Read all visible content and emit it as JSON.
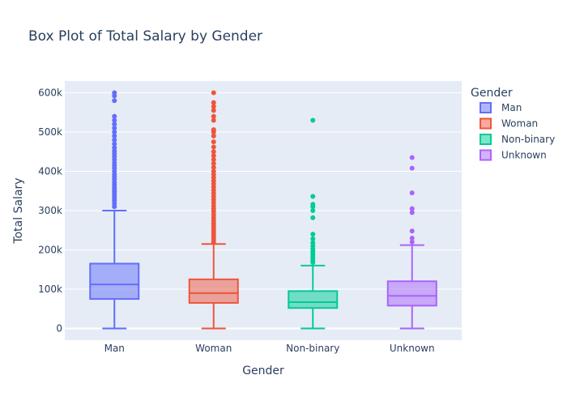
{
  "chart_data": {
    "type": "box",
    "title": "Box Plot of Total Salary by Gender",
    "xlabel": "Gender",
    "ylabel": "Total Salary",
    "ylim": [
      -30000,
      630000
    ],
    "y_ticks": [
      0,
      100000,
      200000,
      300000,
      400000,
      500000,
      600000
    ],
    "y_tick_labels": [
      "0",
      "100k",
      "200k",
      "300k",
      "400k",
      "500k",
      "600k"
    ],
    "categories": [
      "Man",
      "Woman",
      "Non-binary",
      "Unknown"
    ],
    "legend": {
      "title": "Gender",
      "position": "right"
    },
    "grid": true,
    "series": [
      {
        "name": "Man",
        "color": "#636efa",
        "min": 0,
        "q1": 75000,
        "median": 112000,
        "q3": 165000,
        "max": 300000,
        "outliers": [
          310000,
          318000,
          325000,
          330000,
          336000,
          342000,
          348000,
          352000,
          358000,
          365000,
          372000,
          380000,
          386000,
          392000,
          400000,
          408000,
          415000,
          422000,
          430000,
          438000,
          445000,
          452000,
          460000,
          470000,
          480000,
          490000,
          500000,
          510000,
          520000,
          530000,
          540000,
          580000,
          592000,
          600000
        ]
      },
      {
        "name": "Woman",
        "color": "#ef553b",
        "min": 0,
        "q1": 65000,
        "median": 90000,
        "q3": 125000,
        "max": 215000,
        "outliers": [
          220000,
          226000,
          232000,
          238000,
          244000,
          250000,
          256000,
          262000,
          268000,
          275000,
          282000,
          290000,
          298000,
          305000,
          312000,
          320000,
          328000,
          336000,
          344000,
          352000,
          360000,
          368000,
          376000,
          384000,
          392000,
          400000,
          410000,
          420000,
          430000,
          440000,
          450000,
          462000,
          475000,
          490000,
          500000,
          506000,
          530000,
          540000,
          555000,
          565000,
          575000,
          600000
        ]
      },
      {
        "name": "Non-binary",
        "color": "#00cc96",
        "min": 0,
        "q1": 52000,
        "median": 67000,
        "q3": 95000,
        "max": 160000,
        "outliers": [
          168000,
          172000,
          178000,
          184000,
          190000,
          196000,
          202000,
          210000,
          218000,
          228000,
          240000,
          282000,
          300000,
          310000,
          316000,
          336000,
          530000
        ]
      },
      {
        "name": "Unknown",
        "color": "#ab63fa",
        "min": 0,
        "q1": 58000,
        "median": 83000,
        "q3": 120000,
        "max": 212000,
        "outliers": [
          220000,
          230000,
          248000,
          295000,
          305000,
          345000,
          408000,
          435000
        ]
      }
    ]
  }
}
